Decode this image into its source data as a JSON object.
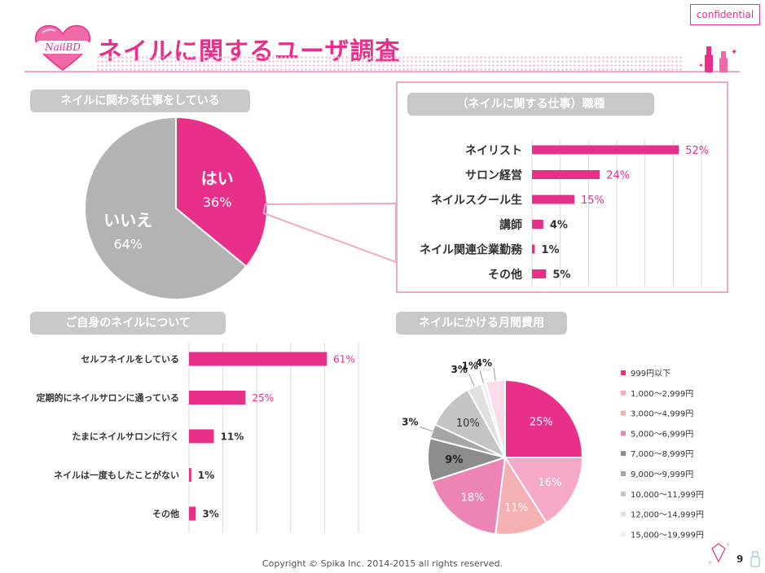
{
  "header": {
    "title": "ネイルに関するユーザ調査",
    "confidential": "confidential",
    "logo_text": "NailBD",
    "page_number": "9"
  },
  "footer": {
    "copyright": "Copyright © Spika Inc. 2014-2015 all rights reserved."
  },
  "colors": {
    "accent": "#e8308a",
    "gray": "#b3b3b3",
    "header_gray": "#c8c8c8",
    "frame_pink": "#f3a7c8"
  },
  "chart_data": [
    {
      "type": "pie",
      "title": "ネイルに関わる仕事をしている",
      "slices": [
        {
          "label": "はい",
          "value": 36,
          "display": "36%",
          "color": "#e8308a"
        },
        {
          "label": "いいえ",
          "value": 64,
          "display": "64%",
          "color": "#b3b3b3"
        }
      ]
    },
    {
      "type": "bar",
      "orientation": "horizontal",
      "title": "（ネイルに関する仕事）職種",
      "categories": [
        "ネイリスト",
        "サロン経営",
        "ネイルスクール生",
        "講師",
        "ネイル関連企業勤務",
        "その他"
      ],
      "values": [
        52,
        24,
        15,
        4,
        1,
        5
      ],
      "labels": [
        "52%",
        "24%",
        "15%",
        "4%",
        "1%",
        "5%"
      ],
      "xlim": [
        0,
        60
      ]
    },
    {
      "type": "bar",
      "orientation": "horizontal",
      "title": "ご自身のネイルについて",
      "categories": [
        "セルフネイルをしている",
        "定期的にネイルサロンに通っている",
        "たまにネイルサロンに行く",
        "ネイルは一度もしたことがない",
        "その他"
      ],
      "values": [
        61,
        25,
        11,
        1,
        3
      ],
      "labels": [
        "61%",
        "25%",
        "11%",
        "1%",
        "3%"
      ],
      "xlim": [
        0,
        75
      ]
    },
    {
      "type": "pie",
      "title": "ネイルにかける月間費用",
      "slices": [
        {
          "label": "999円以下",
          "value": 25,
          "display": "25%",
          "color": "#e8308a"
        },
        {
          "label": "1,000～2,999円",
          "value": 16,
          "display": "16%",
          "color": "#f5a8c8"
        },
        {
          "label": "3,000～4,999円",
          "value": 11,
          "display": "11%",
          "color": "#f4b0b2"
        },
        {
          "label": "5,000～6,999円",
          "value": 18,
          "display": "18%",
          "color": "#ec85b6"
        },
        {
          "label": "7,000～8,999円",
          "value": 9,
          "display": "9%",
          "color": "#8c8c8c"
        },
        {
          "label": "9,000～9,999円",
          "value": 3,
          "display": "3%",
          "color": "#a6a6a6"
        },
        {
          "label": "10,000～11,999円",
          "value": 10,
          "display": "10%",
          "color": "#c4c4c4"
        },
        {
          "label": "12,000～14,999円",
          "value": 3,
          "display": "3%",
          "color": "#e0e0e0"
        },
        {
          "label": "15,000～19,999円",
          "value": 1,
          "display": "1%",
          "color": "#f0f0f0"
        },
        {
          "label": "",
          "value": 4,
          "display": "4%",
          "color": "#fbdbe9"
        }
      ]
    }
  ]
}
